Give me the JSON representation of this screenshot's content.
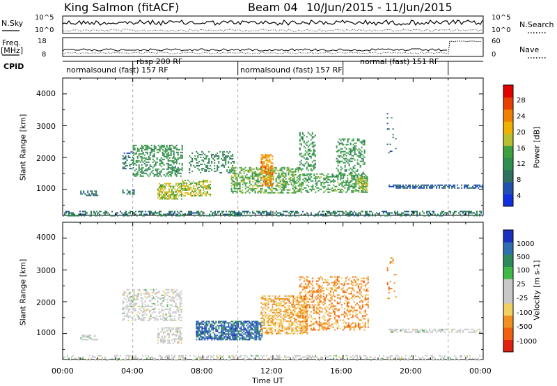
{
  "header": {
    "station": "King Salmon (fitACF)",
    "beam": "Beam 04",
    "dates": "10/Jun/2015 - 11/Jun/2015"
  },
  "top_panels": {
    "nsky_label": "N.Sky",
    "nsearch_label": "N.Search",
    "nsky_ticks": [
      "10^5",
      "10^0"
    ],
    "nsearch_ticks": [
      "10^5",
      "10^0"
    ],
    "freq_label": "Freq.",
    "freq_unit": "[MHz]",
    "freq_ticks": [
      "18",
      "8"
    ],
    "nave_label": "Nave",
    "nave_ticks": [
      "60",
      "0"
    ],
    "cpid_label": "CPID",
    "cpid_segments": [
      {
        "label": "normalsound (fast) 157 RF",
        "start_hour": 0,
        "end_hour": 4
      },
      {
        "label": "rbsp 200 RF",
        "start_hour": 4,
        "end_hour": 10
      },
      {
        "label": "normalsound (fast) 157 RF",
        "start_hour": 10,
        "end_hour": 16
      },
      {
        "label": "normal (fast) 151 RF",
        "start_hour": 16,
        "end_hour": 22
      }
    ]
  },
  "chart_data": [
    {
      "type": "heatmap",
      "panel": "power",
      "ylabel": "Slant Range [km]",
      "xlabel": "",
      "ylim": [
        180,
        4500
      ],
      "xlim_hours": [
        0,
        24
      ],
      "yticks": [
        "4000",
        "3000",
        "2000",
        "1000"
      ],
      "colorbar": {
        "label": "Power [dB]",
        "ticks": [
          "28",
          "24",
          "20",
          "16",
          "12",
          "8",
          "4"
        ],
        "colors": [
          "#1030e0",
          "#2050b0",
          "#307060",
          "#2f8f50",
          "#3fa040",
          "#b8c030",
          "#f0b000",
          "#f08000",
          "#e84000",
          "#e00000"
        ]
      },
      "grid": false,
      "vertical_markers_hours": [
        4,
        10,
        22
      ],
      "scatter_regions": [
        {
          "t0": 0,
          "t1": 24,
          "r0": 180,
          "r1": 320,
          "level": 0.25,
          "density": 0.45
        },
        {
          "t0": 1.0,
          "t1": 2.0,
          "r0": 820,
          "r1": 960,
          "level": 0.2,
          "density": 0.6
        },
        {
          "t0": 3.4,
          "t1": 4.0,
          "r0": 1600,
          "r1": 2200,
          "level": 0.2,
          "density": 0.35
        },
        {
          "t0": 3.4,
          "t1": 4.1,
          "r0": 850,
          "r1": 1000,
          "level": 0.25,
          "density": 0.55
        },
        {
          "t0": 4.0,
          "t1": 6.8,
          "r0": 1400,
          "r1": 2400,
          "level": 0.35,
          "density": 0.45
        },
        {
          "t0": 5.4,
          "t1": 6.8,
          "r0": 700,
          "r1": 1200,
          "level": 0.55,
          "density": 0.6
        },
        {
          "t0": 6.8,
          "t1": 8.4,
          "r0": 800,
          "r1": 1300,
          "level": 0.55,
          "density": 0.55
        },
        {
          "t0": 7.2,
          "t1": 9.8,
          "r0": 1500,
          "r1": 2200,
          "level": 0.3,
          "density": 0.3
        },
        {
          "t0": 9.6,
          "t1": 13.6,
          "r0": 900,
          "r1": 1700,
          "level": 0.45,
          "density": 0.5
        },
        {
          "t0": 11.3,
          "t1": 12.0,
          "r0": 1100,
          "r1": 2100,
          "level": 0.75,
          "density": 0.6
        },
        {
          "t0": 13.5,
          "t1": 14.4,
          "r0": 1600,
          "r1": 2800,
          "level": 0.35,
          "density": 0.4
        },
        {
          "t0": 13.6,
          "t1": 17.4,
          "r0": 900,
          "r1": 1500,
          "level": 0.4,
          "density": 0.45
        },
        {
          "t0": 15.6,
          "t1": 17.2,
          "r0": 1400,
          "r1": 2600,
          "level": 0.35,
          "density": 0.35
        },
        {
          "t0": 16.8,
          "t1": 17.4,
          "r0": 1000,
          "r1": 1400,
          "level": 0.55,
          "density": 0.55
        },
        {
          "t0": 18.5,
          "t1": 19.0,
          "r0": 2000,
          "r1": 3400,
          "level": 0.2,
          "density": 0.12
        },
        {
          "t0": 18.6,
          "t1": 24,
          "r0": 1050,
          "r1": 1150,
          "level": 0.15,
          "density": 0.55
        }
      ]
    },
    {
      "type": "heatmap",
      "panel": "velocity",
      "ylabel": "Slant Range [km]",
      "xlabel": "Time UT",
      "ylim": [
        180,
        4500
      ],
      "xlim_hours": [
        0,
        24
      ],
      "xticks": [
        "00:00",
        "04:00",
        "08:00",
        "12:00",
        "16:00",
        "20:00",
        "00:00"
      ],
      "yticks": [
        "4000",
        "3000",
        "2000",
        "1000"
      ],
      "colorbar": {
        "label": "Velocity [m s-1]",
        "ticks": [
          "1000",
          "500",
          "100",
          "25",
          "-25",
          "-100",
          "-500",
          "-1000"
        ],
        "colors": [
          "#1a30c0",
          "#2f6fb0",
          "#2e8a5a",
          "#3fb848",
          "#c8c8c8",
          "#c8c8c8",
          "#f0d060",
          "#f09020",
          "#f06010",
          "#e02010"
        ]
      },
      "grid": false,
      "vertical_markers_hours": [
        4,
        10,
        22
      ],
      "scatter_regions": [
        {
          "t0": 0,
          "t1": 24,
          "r0": 180,
          "r1": 320,
          "level": 0.5,
          "density": 0.35
        },
        {
          "t0": 1.0,
          "t1": 2.0,
          "r0": 820,
          "r1": 960,
          "level": 0.5,
          "density": 0.5
        },
        {
          "t0": 3.4,
          "t1": 6.8,
          "r0": 1400,
          "r1": 2400,
          "level": 0.5,
          "density": 0.4
        },
        {
          "t0": 5.4,
          "t1": 6.8,
          "r0": 700,
          "r1": 1200,
          "level": 0.5,
          "density": 0.5
        },
        {
          "t0": 7.6,
          "t1": 11.4,
          "r0": 800,
          "r1": 1400,
          "level": 0.12,
          "density": 0.7
        },
        {
          "t0": 11.3,
          "t1": 14.0,
          "r0": 1000,
          "r1": 2200,
          "level": 0.72,
          "density": 0.5
        },
        {
          "t0": 13.5,
          "t1": 17.4,
          "r0": 1100,
          "r1": 2800,
          "level": 0.78,
          "density": 0.35
        },
        {
          "t0": 18.5,
          "t1": 19.0,
          "r0": 2000,
          "r1": 3400,
          "level": 0.8,
          "density": 0.12
        },
        {
          "t0": 18.6,
          "t1": 24,
          "r0": 1050,
          "r1": 1150,
          "level": 0.5,
          "density": 0.55
        }
      ]
    }
  ]
}
